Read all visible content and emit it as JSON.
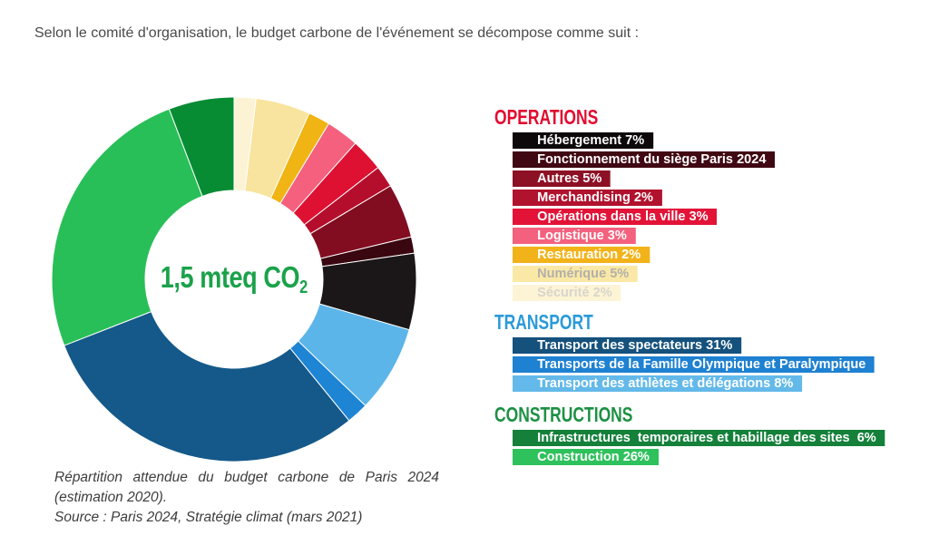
{
  "page": {
    "intro_text": "Selon le comité d'organisation, le budget carbone de l'événement se décompose comme suit :"
  },
  "chart_data": {
    "type": "pie",
    "donut": true,
    "direction": "clockwise",
    "start_angle_deg": 0,
    "unit": "%",
    "center_label": "1,5 mteq CO",
    "center_label_subscript": "2",
    "center_label_color": "#1aa24a",
    "slices": [
      {
        "id": "securite",
        "group": "OPERATIONS",
        "label": "Sécurité",
        "pct": 2,
        "pct_labeled": true,
        "color": "#fcf3d4"
      },
      {
        "id": "numerique",
        "group": "OPERATIONS",
        "label": "Numérique",
        "pct": 5,
        "pct_labeled": true,
        "color": "#f8e49e"
      },
      {
        "id": "restauration",
        "group": "OPERATIONS",
        "label": "Restauration",
        "pct": 2,
        "pct_labeled": true,
        "color": "#f0b514"
      },
      {
        "id": "logistique",
        "group": "OPERATIONS",
        "label": "Logistique",
        "pct": 3,
        "pct_labeled": true,
        "color": "#f4607d"
      },
      {
        "id": "operations-ville",
        "group": "OPERATIONS",
        "label": "Opérations dans la ville",
        "pct": 3,
        "pct_labeled": true,
        "color": "#de1133"
      },
      {
        "id": "merchandising",
        "group": "OPERATIONS",
        "label": "Merchandising",
        "pct": 2,
        "pct_labeled": true,
        "color": "#b50e2c"
      },
      {
        "id": "autres",
        "group": "OPERATIONS",
        "label": "Autres",
        "pct": 5,
        "pct_labeled": true,
        "color": "#820d21"
      },
      {
        "id": "fonctionnement-siege",
        "group": "OPERATIONS",
        "label": "Fonctionnement du siège Paris 2024",
        "pct": 1.5,
        "pct_labeled": false,
        "color": "#3a060f"
      },
      {
        "id": "hebergement",
        "group": "OPERATIONS",
        "label": "Hébergement",
        "pct": 7,
        "pct_labeled": true,
        "color": "#1b1718"
      },
      {
        "id": "transport-athletes",
        "group": "TRANSPORT",
        "label": "Transport des athlètes et délégations",
        "pct": 8,
        "pct_labeled": true,
        "color": "#5cb5e9"
      },
      {
        "id": "transport-famille",
        "group": "TRANSPORT",
        "label": "Transports de la Famille Olympique et Paralympique",
        "pct": 2,
        "pct_labeled": false,
        "color": "#1e84d4"
      },
      {
        "id": "transport-spectateurs",
        "group": "TRANSPORT",
        "label": "Transport des spectateurs",
        "pct": 31,
        "pct_labeled": true,
        "color": "#14598a"
      },
      {
        "id": "construction",
        "group": "CONSTRUCTIONS",
        "label": "Construction",
        "pct": 26,
        "pct_labeled": true,
        "color": "#29bf58"
      },
      {
        "id": "infrastructures",
        "group": "CONSTRUCTIONS",
        "label": "Infrastructures temporaires et habillage des sites",
        "pct": 6,
        "pct_labeled": true,
        "color": "#078c34"
      }
    ]
  },
  "legend": {
    "groups": [
      {
        "title": "OPERATIONS",
        "color": "#e20c30",
        "items": [
          {
            "label": "Hébergement 7%",
            "bg": "#0d090a"
          },
          {
            "label": "Fonctionnement du siège Paris 2024",
            "bg": "#400813"
          },
          {
            "label": "Autres 5%",
            "bg": "#8d1125"
          },
          {
            "label": "Merchandising 2%",
            "bg": "#b1122e"
          },
          {
            "label": "Opérations dans la ville 3%",
            "bg": "#e21337"
          },
          {
            "label": "Logistique 3%",
            "bg": "#f4617e"
          },
          {
            "label": "Restauration 2%",
            "bg": "#f2b31a"
          },
          {
            "label": "Numérique 5%",
            "bg": "#fae9a6",
            "fg": "#b3b0ab"
          },
          {
            "label": "Sécurité 2%",
            "bg": "#fdf4d6",
            "fg": "#d8d5cb"
          }
        ]
      },
      {
        "title": "TRANSPORT",
        "color": "#2b9ad9",
        "items": [
          {
            "label": "Transport des spectateurs 31%",
            "bg": "#15517d"
          },
          {
            "label": "Transports de la Famille Olympique et Paralympique",
            "bg": "#1e81d1"
          },
          {
            "label": "Transport des athlètes et délégations 8%",
            "bg": "#63b9e9"
          }
        ]
      },
      {
        "title": "CONSTRUCTIONS",
        "color": "#1d9044",
        "items": [
          {
            "label": "Infrastructures  temporaires et habillage des sites  6%",
            "bg": "#14803a"
          },
          {
            "label": "Construction 26%",
            "bg": "#2fc15c"
          }
        ]
      }
    ]
  },
  "caption": {
    "line1": "Répartition attendue du budget carbone de Paris 2024 (estimation 2020).",
    "line2": "Source : Paris 2024, Stratégie climat (mars 2021)"
  }
}
